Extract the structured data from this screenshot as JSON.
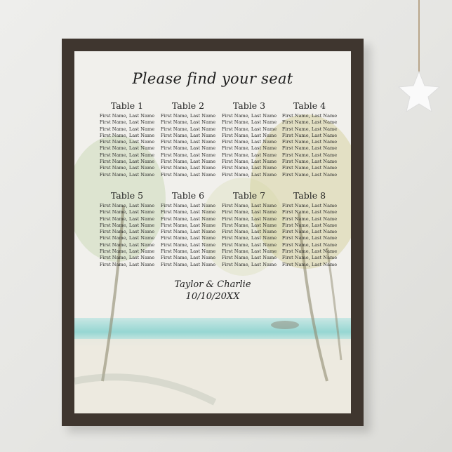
{
  "poster": {
    "title": "Please find your seat",
    "tables": [
      {
        "name": "Table 1",
        "guests": [
          "First Name, Last Name",
          "First Name, Last Name",
          "First Name, Last Name",
          "First Name, Last Name",
          "First Name, Last Name",
          "First Name, Last Name",
          "First Name, Last Name",
          "First Name, Last Name",
          "First Name, Last Name",
          "First Name, Last Name"
        ]
      },
      {
        "name": "Table 2",
        "guests": [
          "First Name, Last Name",
          "First Name, Last Name",
          "First Name, Last Name",
          "First Name, Last Name",
          "First Name, Last Name",
          "First Name, Last Name",
          "First Name, Last Name",
          "First Name, Last Name",
          "First Name, Last Name",
          "First Name, Last Name"
        ]
      },
      {
        "name": "Table 3",
        "guests": [
          "First Name, Last Name",
          "First Name, Last Name",
          "First Name, Last Name",
          "First Name, Last Name",
          "First Name, Last Name",
          "First Name, Last Name",
          "First Name, Last Name",
          "First Name, Last Name",
          "First Name, Last Name",
          "First Name, Last Name"
        ]
      },
      {
        "name": "Table 4",
        "guests": [
          "First Name, Last Name",
          "First Name, Last Name",
          "First Name, Last Name",
          "First Name, Last Name",
          "First Name, Last Name",
          "First Name, Last Name",
          "First Name, Last Name",
          "First Name, Last Name",
          "First Name, Last Name",
          "First Name, Last Name"
        ]
      },
      {
        "name": "Table 5",
        "guests": [
          "First Name, Last Name",
          "First Name, Last Name",
          "First Name, Last Name",
          "First Name, Last Name",
          "First Name, Last Name",
          "First Name, Last Name",
          "First Name, Last Name",
          "First Name, Last Name",
          "First Name, Last Name",
          "First Name, Last Name"
        ]
      },
      {
        "name": "Table 6",
        "guests": [
          "First Name, Last Name",
          "First Name, Last Name",
          "First Name, Last Name",
          "First Name, Last Name",
          "First Name, Last Name",
          "First Name, Last Name",
          "First Name, Last Name",
          "First Name, Last Name",
          "First Name, Last Name",
          "First Name, Last Name"
        ]
      },
      {
        "name": "Table 7",
        "guests": [
          "First Name, Last Name",
          "First Name, Last Name",
          "First Name, Last Name",
          "First Name, Last Name",
          "First Name, Last Name",
          "First Name, Last Name",
          "First Name, Last Name",
          "First Name, Last Name",
          "First Name, Last Name",
          "First Name, Last Name"
        ]
      },
      {
        "name": "Table 8",
        "guests": [
          "First Name, Last Name",
          "First Name, Last Name",
          "First Name, Last Name",
          "First Name, Last Name",
          "First Name, Last Name",
          "First Name, Last Name",
          "First Name, Last Name",
          "First Name, Last Name",
          "First Name, Last Name",
          "First Name, Last Name"
        ]
      }
    ],
    "couple": "Taylor & Charlie",
    "date": "10/10/20XX"
  },
  "colors": {
    "frame": "#3f362f",
    "sea": "#7fd0cc",
    "palm": "#b9c77a",
    "wall": "#e8e8e5"
  }
}
